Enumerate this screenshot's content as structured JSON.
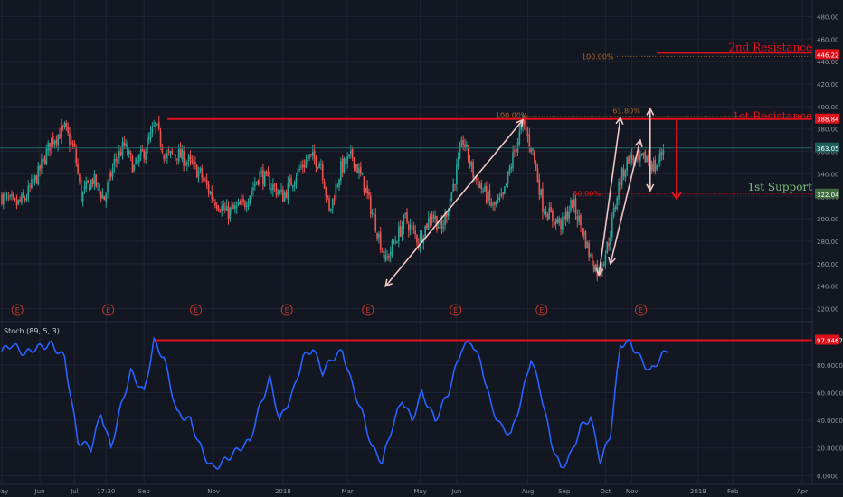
{
  "colors": {
    "background": "#131722",
    "grid": "#1f2433",
    "axis_text": "#9598a1",
    "bull": "#26a69a",
    "bear": "#ef5350",
    "resistance": "#e0101b",
    "support_box": "#3f6b3f",
    "support_text": "#7fbf7f",
    "fib": "#b0642a",
    "stoch": "#2962ff",
    "arrow": "#f0c6c6",
    "last_price_line": "#1e6b6b",
    "earnings": "#c0392b"
  },
  "price_axis": {
    "min": 210,
    "max": 490,
    "ticks": [
      "220.00",
      "240.00",
      "260.00",
      "280.00",
      "300.00",
      "320.00",
      "340.00",
      "360.00",
      "380.00",
      "400.00",
      "420.00",
      "440.00",
      "460.00",
      "480.00"
    ]
  },
  "stoch_axis": {
    "min": -5,
    "max": 110,
    "ticks": [
      "0.0000",
      "20.0000",
      "40.0000",
      "60.0000",
      "80.0000"
    ]
  },
  "time_axis": {
    "labels": [
      {
        "text": "May",
        "bar": 0
      },
      {
        "text": "Jun",
        "bar": 23
      },
      {
        "text": "Jul",
        "bar": 44
      },
      {
        "text": "17:30",
        "bar": 63
      },
      {
        "text": "Sep",
        "bar": 86
      },
      {
        "text": "Nov",
        "bar": 128
      },
      {
        "text": "2018",
        "bar": 170
      },
      {
        "text": "Mar",
        "bar": 209
      },
      {
        "text": "May",
        "bar": 253
      },
      {
        "text": "Jun",
        "bar": 275
      },
      {
        "text": "Aug",
        "bar": 318
      },
      {
        "text": "Sep",
        "bar": 340
      },
      {
        "text": "Oct",
        "bar": 365
      },
      {
        "text": "Nov",
        "bar": 381
      },
      {
        "text": "2019",
        "bar": 421
      },
      {
        "text": "Feb",
        "bar": 442
      },
      {
        "text": "Apr",
        "bar": 484
      }
    ],
    "total_bars": 490
  },
  "price_badges": {
    "second_resistance": "446.22",
    "first_resistance": "388.84",
    "last_price": "363.05",
    "support": "322.04"
  },
  "stoch_badge": "97.9467",
  "annotations": {
    "second_resistance_label": "2nd Resistance",
    "first_resistance_label": "1st Resistance",
    "support_label": "1st Support",
    "fib_100_low": "100.00%",
    "fib_100_mid": "100.00%",
    "fib_618": "61.80%",
    "fib_50": "50.00%"
  },
  "indicator": {
    "title": "Stoch (89, 5, 3)"
  },
  "earnings_marker": "E",
  "chart_data": {
    "type": "candlestick",
    "title": "",
    "xlabel": "",
    "ylabel": "",
    "ylim": [
      210,
      490
    ],
    "levels": {
      "second_resistance": 446.22,
      "first_resistance": 388.84,
      "support": 322.04,
      "last_price": 363.05
    },
    "price_path": [
      {
        "bar": 0,
        "price": 320
      },
      {
        "bar": 8,
        "price": 312
      },
      {
        "bar": 14,
        "price": 318
      },
      {
        "bar": 22,
        "price": 340
      },
      {
        "bar": 30,
        "price": 370
      },
      {
        "bar": 38,
        "price": 380
      },
      {
        "bar": 44,
        "price": 360
      },
      {
        "bar": 48,
        "price": 320
      },
      {
        "bar": 55,
        "price": 335
      },
      {
        "bar": 62,
        "price": 318
      },
      {
        "bar": 68,
        "price": 350
      },
      {
        "bar": 74,
        "price": 365
      },
      {
        "bar": 80,
        "price": 345
      },
      {
        "bar": 86,
        "price": 360
      },
      {
        "bar": 93,
        "price": 383
      },
      {
        "bar": 99,
        "price": 355
      },
      {
        "bar": 106,
        "price": 358
      },
      {
        "bar": 113,
        "price": 350
      },
      {
        "bar": 120,
        "price": 340
      },
      {
        "bar": 127,
        "price": 320
      },
      {
        "bar": 136,
        "price": 305
      },
      {
        "bar": 146,
        "price": 312
      },
      {
        "bar": 156,
        "price": 340
      },
      {
        "bar": 163,
        "price": 330
      },
      {
        "bar": 170,
        "price": 320
      },
      {
        "bar": 178,
        "price": 340
      },
      {
        "bar": 186,
        "price": 355
      },
      {
        "bar": 193,
        "price": 350
      },
      {
        "bar": 198,
        "price": 305
      },
      {
        "bar": 205,
        "price": 345
      },
      {
        "bar": 212,
        "price": 356
      },
      {
        "bar": 219,
        "price": 330
      },
      {
        "bar": 226,
        "price": 295
      },
      {
        "bar": 232,
        "price": 262
      },
      {
        "bar": 236,
        "price": 275
      },
      {
        "bar": 244,
        "price": 300
      },
      {
        "bar": 252,
        "price": 280
      },
      {
        "bar": 260,
        "price": 305
      },
      {
        "bar": 266,
        "price": 290
      },
      {
        "bar": 273,
        "price": 330
      },
      {
        "bar": 279,
        "price": 370
      },
      {
        "bar": 285,
        "price": 340
      },
      {
        "bar": 291,
        "price": 325
      },
      {
        "bar": 297,
        "price": 310
      },
      {
        "bar": 303,
        "price": 318
      },
      {
        "bar": 309,
        "price": 355
      },
      {
        "bar": 315,
        "price": 385
      },
      {
        "bar": 321,
        "price": 360
      },
      {
        "bar": 327,
        "price": 312
      },
      {
        "bar": 333,
        "price": 300
      },
      {
        "bar": 339,
        "price": 295
      },
      {
        "bar": 345,
        "price": 315
      },
      {
        "bar": 351,
        "price": 290
      },
      {
        "bar": 356,
        "price": 265
      },
      {
        "bar": 361,
        "price": 252
      },
      {
        "bar": 367,
        "price": 280
      },
      {
        "bar": 373,
        "price": 330
      },
      {
        "bar": 379,
        "price": 355
      },
      {
        "bar": 385,
        "price": 350
      },
      {
        "bar": 390,
        "price": 355
      },
      {
        "bar": 395,
        "price": 345
      },
      {
        "bar": 400,
        "price": 363
      }
    ],
    "stoch_path": [
      {
        "bar": 0,
        "value": 90
      },
      {
        "bar": 6,
        "value": 95
      },
      {
        "bar": 14,
        "value": 88
      },
      {
        "bar": 20,
        "value": 92
      },
      {
        "bar": 30,
        "value": 95
      },
      {
        "bar": 38,
        "value": 85
      },
      {
        "bar": 46,
        "value": 25
      },
      {
        "bar": 54,
        "value": 20
      },
      {
        "bar": 60,
        "value": 45
      },
      {
        "bar": 66,
        "value": 20
      },
      {
        "bar": 72,
        "value": 50
      },
      {
        "bar": 78,
        "value": 75
      },
      {
        "bar": 86,
        "value": 60
      },
      {
        "bar": 92,
        "value": 97
      },
      {
        "bar": 98,
        "value": 85
      },
      {
        "bar": 106,
        "value": 45
      },
      {
        "bar": 114,
        "value": 40
      },
      {
        "bar": 122,
        "value": 15
      },
      {
        "bar": 128,
        "value": 5
      },
      {
        "bar": 136,
        "value": 12
      },
      {
        "bar": 144,
        "value": 20
      },
      {
        "bar": 150,
        "value": 25
      },
      {
        "bar": 156,
        "value": 50
      },
      {
        "bar": 162,
        "value": 70
      },
      {
        "bar": 168,
        "value": 40
      },
      {
        "bar": 176,
        "value": 60
      },
      {
        "bar": 182,
        "value": 85
      },
      {
        "bar": 188,
        "value": 92
      },
      {
        "bar": 194,
        "value": 75
      },
      {
        "bar": 200,
        "value": 85
      },
      {
        "bar": 206,
        "value": 90
      },
      {
        "bar": 212,
        "value": 65
      },
      {
        "bar": 218,
        "value": 45
      },
      {
        "bar": 224,
        "value": 20
      },
      {
        "bar": 230,
        "value": 10
      },
      {
        "bar": 236,
        "value": 35
      },
      {
        "bar": 242,
        "value": 55
      },
      {
        "bar": 248,
        "value": 40
      },
      {
        "bar": 254,
        "value": 60
      },
      {
        "bar": 262,
        "value": 40
      },
      {
        "bar": 270,
        "value": 60
      },
      {
        "bar": 278,
        "value": 92
      },
      {
        "bar": 284,
        "value": 97
      },
      {
        "bar": 290,
        "value": 80
      },
      {
        "bar": 296,
        "value": 50
      },
      {
        "bar": 302,
        "value": 35
      },
      {
        "bar": 308,
        "value": 30
      },
      {
        "bar": 314,
        "value": 55
      },
      {
        "bar": 320,
        "value": 85
      },
      {
        "bar": 326,
        "value": 60
      },
      {
        "bar": 332,
        "value": 25
      },
      {
        "bar": 338,
        "value": 5
      },
      {
        "bar": 344,
        "value": 15
      },
      {
        "bar": 350,
        "value": 35
      },
      {
        "bar": 356,
        "value": 42
      },
      {
        "bar": 362,
        "value": 10
      },
      {
        "bar": 368,
        "value": 30
      },
      {
        "bar": 374,
        "value": 95
      },
      {
        "bar": 380,
        "value": 96
      },
      {
        "bar": 386,
        "value": 85
      },
      {
        "bar": 392,
        "value": 75
      },
      {
        "bar": 398,
        "value": 85
      },
      {
        "bar": 403,
        "value": 92
      }
    ],
    "earnings_bars": [
      5,
      60,
      113,
      168,
      217,
      270,
      322,
      382
    ],
    "arrows": [
      {
        "from": {
          "bar": 232,
          "price": 240
        },
        "to": {
          "bar": 315,
          "price": 388
        }
      },
      {
        "from": {
          "bar": 361,
          "price": 250
        },
        "to": {
          "bar": 374,
          "price": 390
        }
      },
      {
        "from": {
          "bar": 368,
          "price": 260
        },
        "to": {
          "bar": 386,
          "price": 370
        }
      },
      {
        "from": {
          "bar": 392,
          "price": 398
        },
        "to": {
          "bar": 392,
          "price": 325
        }
      }
    ],
    "red_drop_arrow": {
      "bar": 408,
      "from_price": 388.84,
      "to_price": 318
    }
  }
}
